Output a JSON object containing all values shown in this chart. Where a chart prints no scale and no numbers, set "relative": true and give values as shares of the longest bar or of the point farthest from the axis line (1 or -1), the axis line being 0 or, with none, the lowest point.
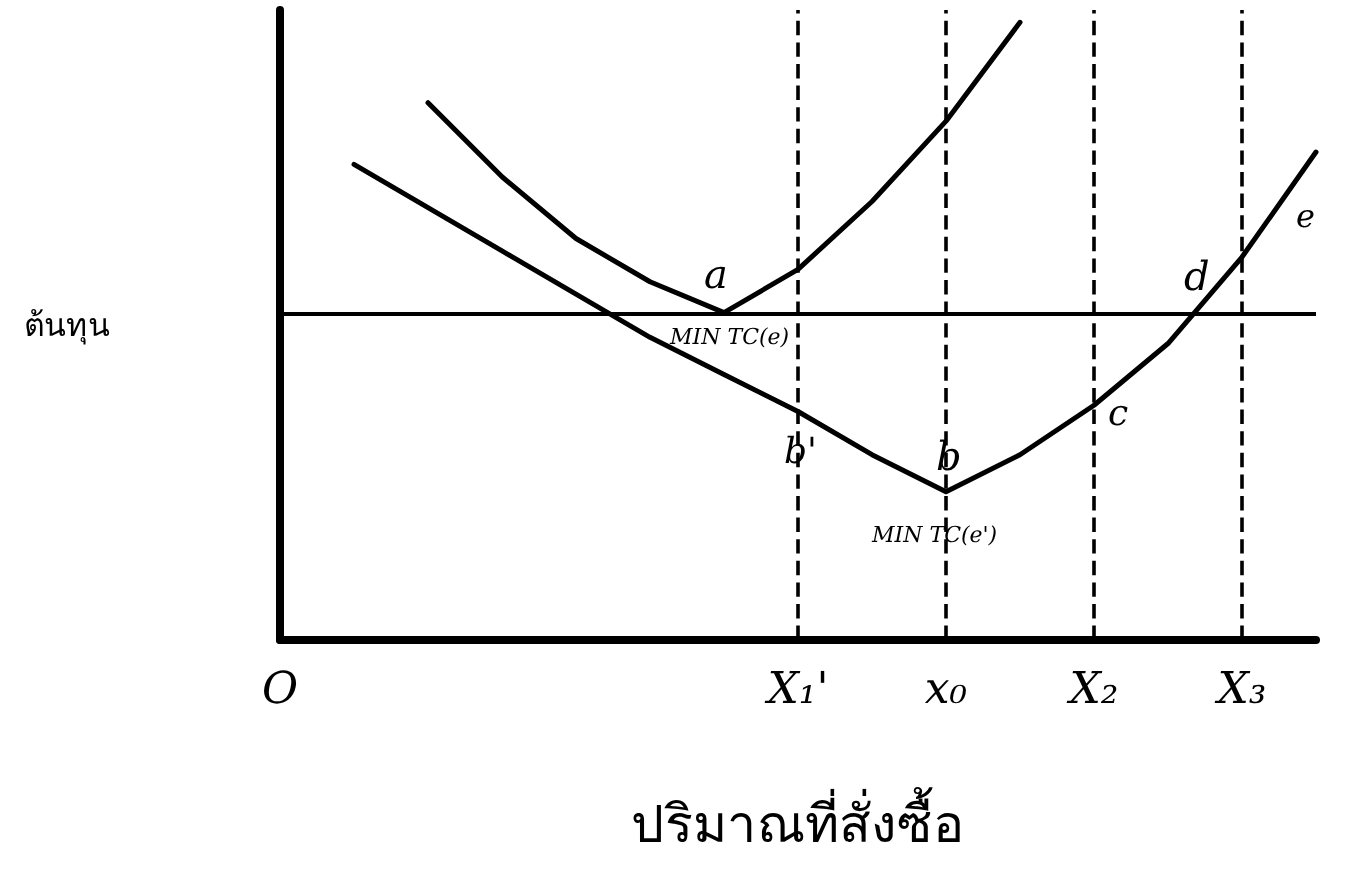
{
  "chart_data": {
    "type": "line",
    "relative": true,
    "ylabel": "ต้นทุน",
    "xlabel": "ปริมาณที่สั่งซื้อ",
    "categories": [
      "O",
      null,
      null,
      null,
      null,
      null,
      null,
      "X₁'",
      null,
      "x₀",
      null,
      "X₂",
      null,
      "X₃",
      null
    ],
    "series": [
      {
        "color": "#000000",
        "values": [
          null,
          null,
          0.87,
          0.75,
          0.65,
          0.58,
          0.53,
          0.6,
          0.71,
          0.84,
          1.0,
          null,
          null,
          null,
          null
        ]
      },
      {
        "color": "#000000",
        "values": [
          null,
          0.77,
          0.7,
          0.63,
          0.56,
          0.49,
          0.43,
          0.37,
          0.3,
          0.24,
          0.3,
          0.38,
          0.48,
          0.62,
          0.79
        ]
      }
    ],
    "ref_lines": [
      {
        "axis": "y",
        "value": 0.53,
        "line_style": "solid",
        "color": "#000000"
      },
      {
        "axis": "x",
        "value": "X₁'",
        "line_style": "dashed",
        "color": "#000000"
      },
      {
        "axis": "x",
        "value": "x₀",
        "line_style": "dashed",
        "color": "#000000"
      },
      {
        "axis": "x",
        "value": "X₂",
        "line_style": "dashed",
        "color": "#000000"
      },
      {
        "axis": "x",
        "value": "X₃",
        "line_style": "dashed",
        "color": "#000000"
      }
    ],
    "annotations": [
      "a",
      "MIN TC(e)",
      "b",
      "MIN TC(e')",
      "b'",
      "c",
      "d",
      "e"
    ],
    "marker": "none",
    "grid": false,
    "line_style": "solid"
  }
}
